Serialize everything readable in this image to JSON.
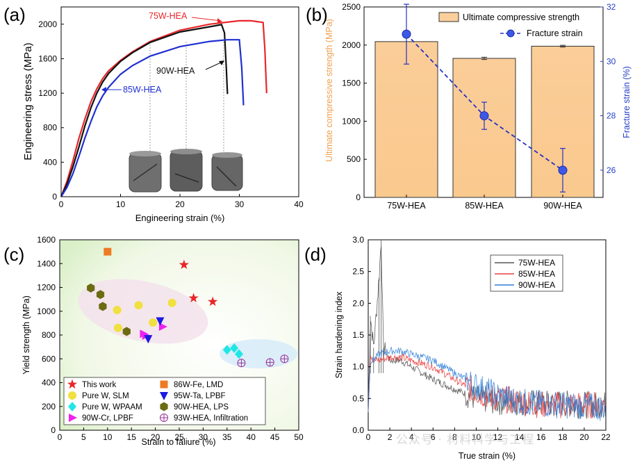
{
  "panels": {
    "a": {
      "label": "(a)",
      "xlabel": "Engineering strain (%)",
      "ylabel": "Engineering stress (MPa)",
      "xticks": [
        "0",
        "10",
        "20",
        "30",
        "40"
      ],
      "yticks": [
        "0",
        "400",
        "800",
        "1200",
        "1600",
        "2000"
      ],
      "annotations": [
        "75W-HEA",
        "90W-HEA",
        "85W-HEA"
      ]
    },
    "b": {
      "label": "(b)",
      "ylabel_left": "Ultimate compressive strength (MPa)",
      "ylabel_right": "Fracture strain (%)",
      "yticks_left": [
        "0",
        "500",
        "1000",
        "1500",
        "2000",
        "2500"
      ],
      "yticks_right": [
        "26",
        "28",
        "30",
        "32"
      ],
      "legend": [
        "Ultimate compressive strength",
        "Fracture strain"
      ]
    },
    "c": {
      "label": "(c)",
      "xlabel": "Strain to faliure (%)",
      "ylabel": "Yield strength (MPa)",
      "xticks": [
        "0",
        "5",
        "10",
        "15",
        "20",
        "25",
        "30",
        "35",
        "40",
        "45",
        "50"
      ],
      "yticks": [
        "0",
        "200",
        "400",
        "600",
        "800",
        "1000",
        "1200",
        "1400",
        "1600"
      ]
    },
    "d": {
      "label": "(d)",
      "xlabel": "True strain (%)",
      "ylabel": "Strain hardening index",
      "xticks": [
        "0",
        "2",
        "4",
        "6",
        "8",
        "10",
        "12",
        "14",
        "16",
        "18",
        "20",
        "22"
      ],
      "yticks": [
        "0.0",
        "0.5",
        "1.0",
        "1.5",
        "2.0",
        "2.5",
        "3.0"
      ]
    }
  },
  "colors": {
    "red": "#e8262b",
    "black": "#111111",
    "blue": "#1f2fd0",
    "bar": "#fbcf9c",
    "bar_edge": "#333333",
    "dash_blue": "#2431c4",
    "orange_label": "#f0a050",
    "right_axis": "#2640c8",
    "d_black": "#555555",
    "d_red": "#e84040",
    "d_blue": "#2f7fd8"
  },
  "watermark": "公众号 · 材料科学与工程",
  "chart_data": [
    {
      "panel": "a",
      "type": "line",
      "xlim": [
        0,
        40
      ],
      "ylim": [
        0,
        2200
      ],
      "series": [
        {
          "name": "75W-HEA",
          "color": "#e8262b",
          "x": [
            0,
            1,
            2,
            3,
            4,
            5,
            6,
            7,
            8,
            10,
            12,
            15,
            20,
            25,
            30,
            32,
            34,
            34.3,
            34.5,
            34.6
          ],
          "y": [
            0,
            180,
            420,
            680,
            900,
            1100,
            1250,
            1370,
            1460,
            1580,
            1680,
            1800,
            1930,
            2000,
            2040,
            2040,
            2020,
            1700,
            1350,
            1200
          ]
        },
        {
          "name": "90W-HEA",
          "color": "#111111",
          "x": [
            0,
            1,
            2,
            3,
            4,
            5,
            6,
            7,
            8,
            10,
            12,
            15,
            20,
            25,
            27,
            27.5,
            27.8,
            28.0
          ],
          "y": [
            0,
            150,
            350,
            580,
            820,
            1030,
            1200,
            1330,
            1430,
            1570,
            1670,
            1790,
            1910,
            1970,
            1995,
            1900,
            1500,
            1190
          ]
        },
        {
          "name": "85W-HEA",
          "color": "#1f2fd0",
          "x": [
            0,
            1,
            2,
            3,
            4,
            5,
            6,
            7,
            8,
            10,
            12,
            15,
            20,
            25,
            28,
            30,
            30.4,
            30.7
          ],
          "y": [
            0,
            110,
            270,
            470,
            680,
            870,
            1040,
            1170,
            1270,
            1420,
            1520,
            1630,
            1740,
            1800,
            1820,
            1820,
            1500,
            1060
          ]
        }
      ]
    },
    {
      "panel": "b",
      "type": "bar",
      "categories": [
        "75W-HEA",
        "85W-HEA",
        "90W-HEA"
      ],
      "series": [
        {
          "name": "Ultimate compressive strength",
          "values": [
            2045,
            1825,
            1985
          ],
          "errors": [
            0,
            15,
            12
          ],
          "axis": "left"
        },
        {
          "name": "Fracture strain",
          "values": [
            31.0,
            28.0,
            26.0
          ],
          "errors": [
            1.1,
            0.5,
            0.8
          ],
          "axis": "right"
        }
      ],
      "ylim_left": [
        0,
        2500
      ],
      "ylim_right": [
        25,
        32
      ]
    },
    {
      "panel": "c",
      "type": "scatter",
      "xlim": [
        0,
        50
      ],
      "ylim": [
        0,
        1600
      ],
      "series": [
        {
          "name": "This work",
          "marker": "star",
          "color": "#e8262b",
          "x": [
            26,
            28,
            32
          ],
          "y": [
            1390,
            1110,
            1080
          ]
        },
        {
          "name": "Pure W, SLM",
          "marker": "circle",
          "color": "#f0e040",
          "x": [
            12,
            12.2,
            16.5,
            19.5,
            23.5
          ],
          "y": [
            1010,
            860,
            1050,
            905,
            1070
          ]
        },
        {
          "name": "Pure W, WPAAM",
          "marker": "diamond",
          "color": "#22e6e6",
          "x": [
            35,
            36.5,
            37.5
          ],
          "y": [
            675,
            690,
            640
          ]
        },
        {
          "name": "90W-Cr, LPBF",
          "marker": "triangle-right",
          "color": "#ee22ee",
          "x": [
            17.5,
            18,
            21.5
          ],
          "y": [
            810,
            795,
            870
          ]
        },
        {
          "name": "86W-Fe, LMD",
          "marker": "square",
          "color": "#ee7a22",
          "x": [
            10
          ],
          "y": [
            1500
          ]
        },
        {
          "name": "95W-Ta, LPBF",
          "marker": "triangle-down",
          "color": "#1a1ae0",
          "x": [
            21,
            18.5
          ],
          "y": [
            920,
            770
          ]
        },
        {
          "name": "90W-HEA, LPS",
          "marker": "hexagon",
          "color": "#6b6b12",
          "x": [
            6.5,
            8.5,
            9,
            14
          ],
          "y": [
            1195,
            1140,
            1040,
            830
          ]
        },
        {
          "name": "93W-HEA, Infiltration",
          "marker": "circle-plus",
          "color": "#993399",
          "x": [
            38,
            44,
            47
          ],
          "y": [
            565,
            570,
            600
          ]
        }
      ]
    },
    {
      "panel": "d",
      "type": "line",
      "xlim": [
        0,
        22
      ],
      "ylim": [
        0,
        3.0
      ],
      "series": [
        {
          "name": "75W-HEA",
          "color": "#555555",
          "x": [
            0,
            0.2,
            0.5,
            1,
            1.2,
            1.4,
            2,
            3,
            4,
            5,
            6,
            8,
            10,
            12,
            14,
            16,
            18,
            20,
            22
          ],
          "y": [
            0.3,
            1.8,
            1.3,
            2.4,
            3.0,
            1.3,
            1.1,
            1.1,
            1.0,
            0.9,
            0.8,
            0.65,
            0.5,
            0.45,
            0.45,
            0.42,
            0.42,
            0.4,
            0.4
          ]
        },
        {
          "name": "85W-HEA",
          "color": "#e84040",
          "x": [
            0,
            0.2,
            0.5,
            1,
            2,
            3,
            4,
            5,
            6,
            8,
            10,
            12,
            14,
            16,
            18,
            20,
            22
          ],
          "y": [
            0.3,
            1.2,
            1.1,
            1.1,
            1.15,
            1.15,
            1.1,
            1.05,
            1.0,
            0.8,
            0.6,
            0.5,
            0.45,
            0.4,
            0.4,
            0.4,
            0.4
          ]
        },
        {
          "name": "90W-HEA",
          "color": "#2f7fd8",
          "x": [
            0,
            0.2,
            0.5,
            1,
            2,
            3,
            4,
            5,
            6,
            8,
            10,
            12,
            14,
            16,
            18,
            20,
            22
          ],
          "y": [
            0.3,
            1.1,
            1.1,
            1.2,
            1.25,
            1.25,
            1.2,
            1.15,
            1.1,
            0.9,
            0.7,
            0.55,
            0.45,
            0.42,
            0.4,
            0.38,
            0.35
          ]
        }
      ]
    }
  ]
}
